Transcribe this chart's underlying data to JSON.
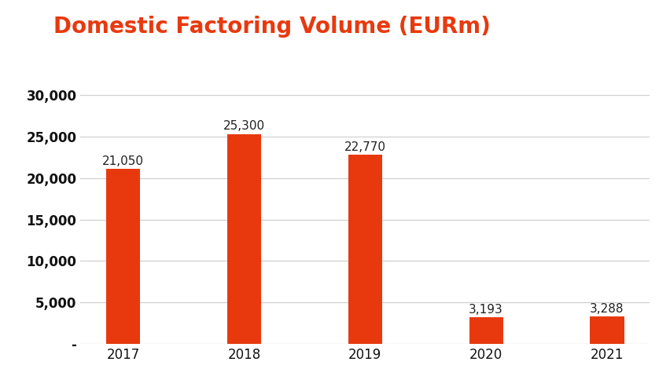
{
  "title": "Domestic Factoring Volume (EURm)",
  "title_color": "#e8390e",
  "title_fontsize": 20,
  "title_fontweight": "bold",
  "categories": [
    "2017",
    "2018",
    "2019",
    "2020",
    "2021"
  ],
  "values": [
    21050,
    25300,
    22770,
    3193,
    3288
  ],
  "bar_color": "#e8390e",
  "bar_labels": [
    "21,050",
    "25,300",
    "22,770",
    "3,193",
    "3,288"
  ],
  "ylim": [
    0,
    32000
  ],
  "yticks": [
    0,
    5000,
    10000,
    15000,
    20000,
    25000,
    30000
  ],
  "ytick_labels": [
    "-",
    "5,000",
    "10,000",
    "15,000",
    "20,000",
    "25,000",
    "30,000"
  ],
  "background_color": "#ffffff",
  "grid_color": "#d0d0d0",
  "bar_label_fontsize": 11,
  "bar_label_color": "#222222",
  "tick_fontsize": 12,
  "bar_width": 0.28
}
